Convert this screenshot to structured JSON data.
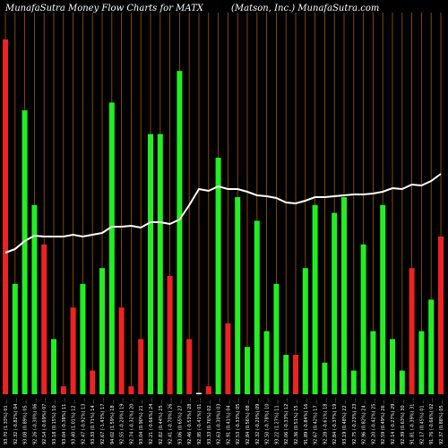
{
  "header": {
    "left": "MunafaSutra  Money Flow  Charts for MATX",
    "right": "(Matson,  Inc.) MunafaSutra.com"
  },
  "chart_data": {
    "type": "bar",
    "title": "MunafaSutra  Money Flow  Charts for MATX",
    "subtitle": "(Matson,  Inc.) MunafaSutra.com",
    "colors": {
      "up": "#22ee22",
      "down": "#ee2222",
      "line": "#ffffff",
      "grid": "#a05a00",
      "background": "#000000"
    },
    "categories": [
      "93.70 (1.33%) 01 ...",
      "92.32 (-0.82%) 04 ...",
      "93.08 (0.89%) 05 ...",
      "92.26 (-0.30%) 06 ...",
      "92.54 (-0.69%) 07 ...",
      "93.18 (0.15%) 10 ...",
      "93.04 (-0.38%) 11 ...",
      "93.40 (1.01%) 12 ...",
      "92.47 (-0.92%) 13 ...",
      "93.33 (0.71%) 14 ...",
      "92.67 (-1.43%) 17 ...",
      "94.02 (1.59%) 18 ...",
      "92.55 (-0.20%) 19 ...",
      "92.74 (-0.32%) 20 ...",
      "93.04 (0.90%) 21 ...",
      "92.21 (-0.66%) 24 ...",
      "92.82 (0.44%) 25 ...",
      "92.41 (-0.70%) 26 ...",
      "93.06 (0.65%) 27 ...",
      "92.46 (-0.53%) 28 ...",
      "92.95 (-0.41%) 01 ...",
      "93.33 (0.76%) 02 ...",
      "92.63 (-0.30%) 03 ...",
      "92.91 (0.41%) 04 ...",
      "92.53 (-0.33%) 05 ...",
      "92.84 (0.56%) 08 ...",
      "92.32 (-0.20%) 09 ...",
      "92.50 (-0.78%) 10 ...",
      "93.22 (1.27%) 11 ...",
      "92.06 (-0.33%) 12 ...",
      "92.36 (0.51%) 15 ...",
      "91.89 (-0.84%) 16 ...",
      "92.67 (0.42%) 17 ...",
      "92.28 (-0.61%) 18 ...",
      "92.84 (-0.37%) 19 ...",
      "93.19 (0.48%) 22 ...",
      "92.75 (-0.23%) 23 ...",
      "92.96 (0.82%) 24 ...",
      "92.20 (-0.42%) 25 ...",
      "92.59 (0.49%) 26 ...",
      "92.14 (-0.27%) 29 ...",
      "92.39 (0.63%) 30 ...",
      "91.81 (-0.39%) 31 ...",
      "92.17 (0.45%) 01 ...",
      "91.76 (-0.66%) 02 ...",
      "92.37 (0.88%) 05 ..."
    ],
    "values": [
      45,
      14,
      36,
      24,
      19,
      7,
      1,
      11,
      14,
      3,
      16,
      37,
      11,
      1,
      7,
      33,
      33,
      15,
      41,
      7,
      0,
      1,
      30,
      9,
      25,
      6,
      22,
      8,
      14,
      5,
      5,
      16,
      24,
      4,
      23,
      25,
      3,
      19,
      8,
      24,
      7,
      3,
      16,
      8,
      12,
      20
    ],
    "directions": [
      "down",
      "up",
      "up",
      "up",
      "down",
      "up",
      "down",
      "down",
      "up",
      "down",
      "up",
      "up",
      "down",
      "down",
      "down",
      "up",
      "up",
      "down",
      "up",
      "down",
      "up",
      "down",
      "up",
      "down",
      "up",
      "up",
      "up",
      "up",
      "up",
      "up",
      "down",
      "up",
      "up",
      "up",
      "up",
      "up",
      "up",
      "up",
      "up",
      "up",
      "up",
      "up",
      "down",
      "up",
      "up",
      "down"
    ],
    "line": [
      158,
      162,
      171,
      177,
      176,
      176,
      176,
      178,
      176,
      178,
      180,
      187,
      187,
      188,
      186,
      192,
      192,
      190,
      195,
      211,
      229,
      227,
      232,
      229,
      229,
      226,
      222,
      221,
      219,
      214,
      213,
      216,
      220,
      220,
      221,
      222,
      223,
      223,
      224,
      226,
      230,
      229,
      234,
      233,
      238,
      246
    ],
    "ylim": [
      0,
      50
    ],
    "grid": true,
    "xlabel": "",
    "ylabel": ""
  }
}
